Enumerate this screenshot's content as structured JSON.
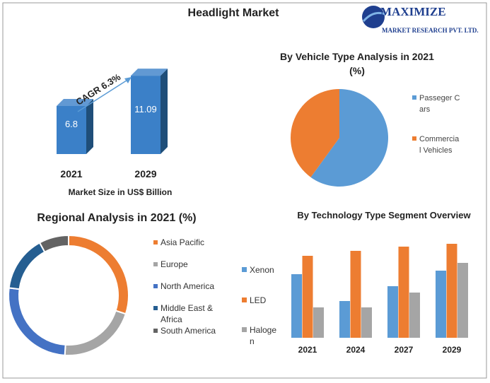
{
  "title": "Headlight Market",
  "logo": {
    "name": "MAXIMIZE",
    "tagline": "MARKET RESEARCH PVT. LTD."
  },
  "chart_data": [
    {
      "type": "bar3d",
      "categories": [
        "2021",
        "2029"
      ],
      "values": [
        6.8,
        11.09
      ],
      "xlabel": "Market Size in US$ Billion",
      "annotation": "CAGR 6.3%",
      "color": "#3b80c8",
      "side_color": "#1f4e79"
    },
    {
      "type": "pie",
      "title": "By Vehicle Type  Analysis in 2021 (%)",
      "categories": [
        "Passeger Cars",
        "Commercial Vehicles"
      ],
      "values": [
        60,
        40
      ],
      "colors": [
        "#5b9bd5",
        "#ed7d31"
      ]
    },
    {
      "type": "donut",
      "title": "Regional Analysis in 2021 (%)",
      "categories": [
        "Asia Pacific",
        "Europe",
        "North America",
        "Middle East & Africa",
        "South America"
      ],
      "values": [
        30,
        21,
        26,
        15,
        8
      ],
      "colors": [
        "#ed7d31",
        "#a5a5a5",
        "#4472c4",
        "#255e91",
        "#636363"
      ]
    },
    {
      "type": "grouped-bar",
      "title": "By Technology Type Segment Overview",
      "categories": [
        "2021",
        "2024",
        "2027",
        "2029"
      ],
      "series": [
        {
          "name": "Xenon",
          "color": "#5b9bd5",
          "values": [
            90,
            52,
            73,
            95
          ]
        },
        {
          "name": "LED",
          "color": "#ed7d31",
          "values": [
            116,
            123,
            129,
            133
          ]
        },
        {
          "name": "Halogen",
          "color": "#a5a5a5",
          "values": [
            43,
            43,
            64,
            106
          ]
        }
      ]
    }
  ]
}
